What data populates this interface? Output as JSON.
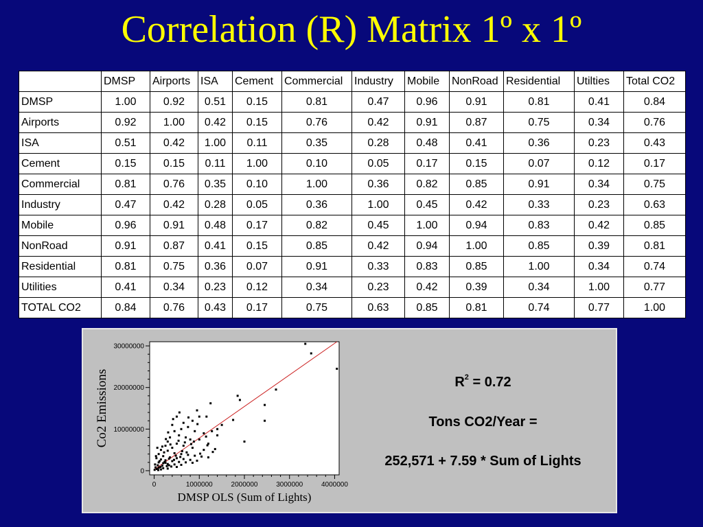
{
  "slide": {
    "title": "Correlation (R) Matrix 1º x 1º"
  },
  "matrix": {
    "corner": "",
    "columns": [
      "DMSP",
      "Airports",
      "ISA",
      "Cement",
      "Commercial",
      "Industry",
      "Mobile",
      "NonRoad",
      "Residential",
      "Utilties",
      "Total CO2"
    ],
    "rows": [
      {
        "label": "DMSP",
        "values": [
          "1.00",
          "0.92",
          "0.51",
          "0.15",
          "0.81",
          "0.47",
          "0.96",
          "0.91",
          "0.81",
          "0.41",
          "0.84"
        ]
      },
      {
        "label": "Airports",
        "values": [
          "0.92",
          "1.00",
          "0.42",
          "0.15",
          "0.76",
          "0.42",
          "0.91",
          "0.87",
          "0.75",
          "0.34",
          "0.76"
        ]
      },
      {
        "label": "ISA",
        "values": [
          "0.51",
          "0.42",
          "1.00",
          "0.11",
          "0.35",
          "0.28",
          "0.48",
          "0.41",
          "0.36",
          "0.23",
          "0.43"
        ]
      },
      {
        "label": "Cement",
        "values": [
          "0.15",
          "0.15",
          "0.11",
          "1.00",
          "0.10",
          "0.05",
          "0.17",
          "0.15",
          "0.07",
          "0.12",
          "0.17"
        ]
      },
      {
        "label": "Commercial",
        "values": [
          "0.81",
          "0.76",
          "0.35",
          "0.10",
          "1.00",
          "0.36",
          "0.82",
          "0.85",
          "0.91",
          "0.34",
          "0.75"
        ]
      },
      {
        "label": "Industry",
        "values": [
          "0.47",
          "0.42",
          "0.28",
          "0.05",
          "0.36",
          "1.00",
          "0.45",
          "0.42",
          "0.33",
          "0.23",
          "0.63"
        ]
      },
      {
        "label": "Mobile",
        "values": [
          "0.96",
          "0.91",
          "0.48",
          "0.17",
          "0.82",
          "0.45",
          "1.00",
          "0.94",
          "0.83",
          "0.42",
          "0.85"
        ]
      },
      {
        "label": "NonRoad",
        "values": [
          "0.91",
          "0.87",
          "0.41",
          "0.15",
          "0.85",
          "0.42",
          "0.94",
          "1.00",
          "0.85",
          "0.39",
          "0.81"
        ]
      },
      {
        "label": "Residential",
        "values": [
          "0.81",
          "0.75",
          "0.36",
          "0.07",
          "0.91",
          "0.33",
          "0.83",
          "0.85",
          "1.00",
          "0.34",
          "0.74"
        ]
      },
      {
        "label": "Utilities",
        "values": [
          "0.41",
          "0.34",
          "0.23",
          "0.12",
          "0.34",
          "0.23",
          "0.42",
          "0.39",
          "0.34",
          "1.00",
          "0.77"
        ]
      },
      {
        "label": "TOTAL CO2",
        "values": [
          "0.84",
          "0.76",
          "0.43",
          "0.17",
          "0.75",
          "0.63",
          "0.85",
          "0.81",
          "0.74",
          "0.77",
          "1.00"
        ]
      }
    ]
  },
  "regression": {
    "r2_label": "R",
    "r2_sup": "2",
    "r2_value": " = 0.72",
    "line1": "Tons CO2/Year =",
    "line2": "252,571 + 7.59 * Sum of Lights"
  },
  "chart_data": {
    "type": "scatter",
    "title": "",
    "xlabel": "DMSP OLS (Sum of Lights)",
    "ylabel": "Co2 Emissions",
    "xlim": [
      -100000,
      4100000
    ],
    "ylim": [
      -1000000,
      31000000
    ],
    "xticks": [
      0,
      1000000,
      2000000,
      3000000,
      4000000
    ],
    "xtick_labels": [
      "0",
      "1000000",
      "2000000",
      "3000000",
      "4000000"
    ],
    "yticks": [
      0,
      10000000,
      20000000,
      30000000
    ],
    "ytick_labels": [
      "0",
      "10000000",
      "20000000",
      "30000000"
    ],
    "grid": false,
    "fit_line": {
      "intercept": 252571,
      "slope": 7.59,
      "color": "#cc2222"
    },
    "point_color": "#000000",
    "points": [
      [
        3350000,
        30500000
      ],
      [
        3480000,
        28200000
      ],
      [
        4050000,
        24500000
      ],
      [
        2700000,
        19500000
      ],
      [
        1850000,
        18000000
      ],
      [
        1900000,
        17000000
      ],
      [
        2450000,
        15800000
      ],
      [
        1250000,
        16200000
      ],
      [
        2450000,
        12000000
      ],
      [
        1750000,
        12200000
      ],
      [
        2000000,
        7000000
      ],
      [
        1400000,
        8500000
      ],
      [
        1400000,
        10000000
      ],
      [
        1500000,
        11000000
      ],
      [
        1280000,
        9500000
      ],
      [
        1160000,
        13000000
      ],
      [
        950000,
        14500000
      ],
      [
        1000000,
        13000000
      ],
      [
        850000,
        12000000
      ],
      [
        560000,
        14000000
      ],
      [
        500000,
        13000000
      ],
      [
        650000,
        11500000
      ],
      [
        750000,
        10500000
      ],
      [
        900000,
        9500000
      ],
      [
        1100000,
        9000000
      ],
      [
        600000,
        10000000
      ],
      [
        400000,
        11000000
      ],
      [
        450000,
        9500000
      ],
      [
        550000,
        8500000
      ],
      [
        700000,
        8000000
      ],
      [
        800000,
        7500000
      ],
      [
        1000000,
        7500000
      ],
      [
        1200000,
        6500000
      ],
      [
        350000,
        8000000
      ],
      [
        300000,
        7000000
      ],
      [
        500000,
        6500000
      ],
      [
        650000,
        6000000
      ],
      [
        850000,
        5500000
      ],
      [
        1100000,
        5000000
      ],
      [
        1300000,
        4500000
      ],
      [
        250000,
        6000000
      ],
      [
        400000,
        5500000
      ],
      [
        150000,
        5000000
      ],
      [
        300000,
        4800000
      ],
      [
        450000,
        4200000
      ],
      [
        600000,
        4000000
      ],
      [
        750000,
        3800000
      ],
      [
        900000,
        3600000
      ],
      [
        1050000,
        3400000
      ],
      [
        1200000,
        3200000
      ],
      [
        100000,
        4000000
      ],
      [
        200000,
        3500000
      ],
      [
        350000,
        3200000
      ],
      [
        500000,
        3000000
      ],
      [
        650000,
        2800000
      ],
      [
        800000,
        2600000
      ],
      [
        950000,
        2400000
      ],
      [
        50000,
        3000000
      ],
      [
        150000,
        2700000
      ],
      [
        250000,
        2500000
      ],
      [
        400000,
        2300000
      ],
      [
        550000,
        2100000
      ],
      [
        700000,
        2000000
      ],
      [
        850000,
        1900000
      ],
      [
        100000,
        2000000
      ],
      [
        200000,
        1800000
      ],
      [
        300000,
        1600000
      ],
      [
        450000,
        1500000
      ],
      [
        600000,
        1400000
      ],
      [
        20000,
        1500000
      ],
      [
        80000,
        1300000
      ],
      [
        180000,
        1200000
      ],
      [
        280000,
        1100000
      ],
      [
        380000,
        1000000
      ],
      [
        500000,
        900000
      ],
      [
        30000,
        800000
      ],
      [
        100000,
        700000
      ],
      [
        200000,
        600000
      ],
      [
        300000,
        500000
      ],
      [
        60000,
        400000
      ],
      [
        150000,
        300000
      ],
      [
        10000,
        200000
      ],
      [
        90000,
        150000
      ],
      [
        250000,
        1900000
      ],
      [
        120000,
        2300000
      ],
      [
        330000,
        2900000
      ],
      [
        480000,
        3600000
      ],
      [
        620000,
        4700000
      ],
      [
        220000,
        4400000
      ],
      [
        360000,
        6300000
      ],
      [
        180000,
        5800000
      ],
      [
        540000,
        7200000
      ],
      [
        680000,
        6800000
      ],
      [
        820000,
        6400000
      ],
      [
        1150000,
        8200000
      ],
      [
        960000,
        11200000
      ],
      [
        760000,
        12800000
      ],
      [
        420000,
        12400000
      ],
      [
        310000,
        9200000
      ],
      [
        260000,
        7600000
      ],
      [
        70000,
        5500000
      ],
      [
        40000,
        3500000
      ],
      [
        140000,
        900000
      ],
      [
        230000,
        2100000
      ],
      [
        330000,
        1300000
      ],
      [
        440000,
        2600000
      ],
      [
        580000,
        3300000
      ],
      [
        720000,
        4400000
      ],
      [
        1020000,
        4100000
      ],
      [
        1180000,
        6100000
      ],
      [
        1350000,
        5200000
      ],
      [
        880000,
        7000000
      ]
    ]
  }
}
